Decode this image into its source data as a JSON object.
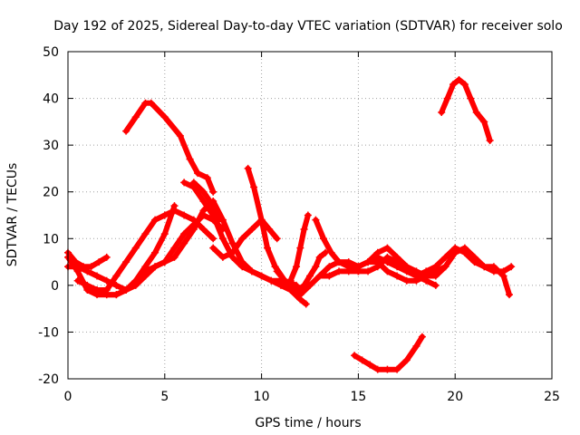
{
  "chart_data": {
    "type": "scatter",
    "title": "Day 192 of 2025, Sidereal Day-to-day VTEC variation (SDTVAR) for receiver solo",
    "xlabel": "GPS time / hours",
    "ylabel": "SDTVAR / TECUs",
    "xlim": [
      0,
      25
    ],
    "ylim": [
      -20,
      50
    ],
    "xticks": [
      0,
      5,
      10,
      15,
      20,
      25
    ],
    "yticks": [
      -20,
      -10,
      0,
      10,
      20,
      30,
      40,
      50
    ],
    "grid": true,
    "color": "#ff0000",
    "marker": "plus",
    "series": [
      {
        "name": "s1",
        "x": [
          3.0,
          3.5,
          4.0,
          4.3,
          5.0,
          5.8,
          6.3,
          6.7,
          7.2,
          7.5
        ],
        "y": [
          33,
          36,
          39,
          39,
          36,
          32,
          27,
          24,
          23,
          20
        ]
      },
      {
        "name": "s2",
        "x": [
          6.0,
          6.5,
          7.0,
          7.5,
          8.0,
          8.5,
          9.0,
          9.5,
          10.0,
          10.5,
          11.0,
          11.5,
          12.0,
          12.3
        ],
        "y": [
          22,
          21,
          18,
          15,
          10,
          6,
          4,
          3,
          2,
          1,
          0,
          -1,
          -3,
          -4
        ]
      },
      {
        "name": "s3",
        "x": [
          9.3,
          9.6,
          10.0,
          10.3,
          10.7,
          11.2,
          11.8
        ],
        "y": [
          25,
          21,
          14,
          8,
          4,
          1,
          0
        ]
      },
      {
        "name": "s4",
        "x": [
          0.0,
          0.5,
          1.0,
          1.5,
          2.0,
          2.5,
          3.0,
          3.5,
          4.0,
          4.5,
          5.0
        ],
        "y": [
          6,
          3,
          -1,
          -2,
          -2,
          -2,
          -1,
          0,
          2,
          4,
          5
        ]
      },
      {
        "name": "s5",
        "x": [
          0.0,
          0.4,
          0.8,
          1.2,
          1.6,
          2.0
        ],
        "y": [
          7,
          5,
          4,
          4,
          5,
          6
        ]
      },
      {
        "name": "s6",
        "x": [
          1.5,
          2.0,
          2.5,
          3.0,
          3.5,
          4.0,
          4.5,
          5.0,
          5.5,
          6.0,
          6.5,
          7.0,
          7.5
        ],
        "y": [
          -1,
          -1,
          2,
          5,
          8,
          11,
          14,
          15,
          16,
          15,
          14,
          12,
          10
        ]
      },
      {
        "name": "s7",
        "x": [
          0.0,
          0.5,
          1.0,
          1.5,
          2.0,
          2.5,
          3.0
        ],
        "y": [
          4,
          4,
          3,
          2,
          1,
          0,
          -1
        ]
      },
      {
        "name": "s8",
        "x": [
          3.5,
          4.0,
          4.5,
          5.0,
          5.5,
          6.0,
          6.5,
          7.0,
          7.5,
          8.0
        ],
        "y": [
          1,
          3,
          4,
          5,
          8,
          11,
          13,
          15,
          14,
          12
        ]
      },
      {
        "name": "s9",
        "x": [
          0.5,
          1.0,
          1.5,
          2.0,
          2.5,
          3.0,
          3.5,
          4.0,
          4.5,
          5.0,
          5.5
        ],
        "y": [
          1,
          0,
          -1,
          -2,
          -2,
          -1,
          1,
          4,
          7,
          11,
          17
        ]
      },
      {
        "name": "s10",
        "x": [
          5.0,
          5.5,
          6.0,
          6.5,
          7.0,
          7.5,
          8.0,
          8.5,
          9.0,
          9.5,
          10.0,
          10.5,
          11.0,
          11.5,
          12.0
        ],
        "y": [
          5,
          6,
          9,
          12,
          16,
          18,
          14,
          9,
          5,
          3,
          2,
          1,
          1,
          0,
          -2
        ]
      },
      {
        "name": "s11",
        "x": [
          7.5,
          8.0,
          8.5,
          9.0,
          9.5,
          10.0,
          10.4,
          10.8
        ],
        "y": [
          8,
          6,
          7,
          10,
          12,
          14,
          12,
          10
        ]
      },
      {
        "name": "s12",
        "x": [
          6.5,
          7.0,
          7.5,
          7.8
        ],
        "y": [
          22,
          20,
          17,
          14
        ]
      },
      {
        "name": "s13",
        "x": [
          10.8,
          11.2,
          11.6,
          11.9,
          12.2,
          12.5,
          12.8,
          13.0,
          13.3
        ],
        "y": [
          3,
          1,
          0,
          -1,
          0,
          2,
          4,
          6,
          7
        ]
      },
      {
        "name": "s14",
        "x": [
          11.5,
          11.8,
          12.0,
          12.2,
          12.4
        ],
        "y": [
          1,
          4,
          8,
          12,
          15
        ]
      },
      {
        "name": "s15",
        "x": [
          12.0,
          12.5,
          13.0,
          13.5,
          14.0,
          14.5,
          15.0,
          15.5,
          16.0,
          16.5,
          17.0,
          17.5,
          18.0,
          18.5,
          19.0,
          19.5,
          20.0,
          20.5,
          21.0,
          21.5,
          22.0,
          22.5,
          22.9
        ],
        "y": [
          -2,
          0,
          2,
          4,
          5,
          5,
          4,
          5,
          6,
          5,
          4,
          3,
          2,
          3,
          4,
          6,
          8,
          7,
          5,
          4,
          3,
          3,
          4
        ]
      },
      {
        "name": "s16",
        "x": [
          12.8,
          13.2,
          13.6,
          14.0,
          14.5,
          15.0
        ],
        "y": [
          14,
          10,
          7,
          5,
          4,
          3
        ]
      },
      {
        "name": "s17",
        "x": [
          13.0,
          13.5,
          14.0,
          14.5,
          15.0,
          15.5,
          16.0,
          16.5,
          17.0,
          17.5,
          18.0,
          18.5,
          19.0,
          19.5,
          20.0,
          20.5,
          21.0,
          21.5,
          22.0,
          22.5,
          22.8
        ],
        "y": [
          2,
          2,
          3,
          3,
          3,
          3,
          4,
          6,
          5,
          4,
          3,
          2,
          2,
          4,
          7,
          8,
          6,
          4,
          4,
          2,
          -2
        ]
      },
      {
        "name": "s18",
        "x": [
          15.0,
          15.5,
          16.0,
          16.5,
          17.0,
          17.5,
          18.0,
          18.5,
          19.0,
          19.5
        ],
        "y": [
          4,
          5,
          5,
          3,
          2,
          1,
          1,
          2,
          3,
          4
        ]
      },
      {
        "name": "s19",
        "x": [
          15.5,
          16.0,
          16.5,
          17.0,
          17.5,
          18.0,
          18.5,
          19.0
        ],
        "y": [
          5,
          7,
          8,
          6,
          4,
          2,
          1,
          0
        ]
      },
      {
        "name": "s20",
        "x": [
          19.3,
          19.6,
          19.9,
          20.2,
          20.5,
          20.8,
          21.1,
          21.5,
          21.8
        ],
        "y": [
          37,
          40,
          43,
          44,
          43,
          40,
          37,
          35,
          31
        ]
      },
      {
        "name": "s21",
        "x": [
          14.8,
          15.2,
          15.6,
          16.0,
          16.5,
          17.0,
          17.5,
          18.0,
          18.3
        ],
        "y": [
          -15,
          -16,
          -17,
          -18,
          -18,
          -18,
          -16,
          -13,
          -11
        ]
      }
    ]
  }
}
